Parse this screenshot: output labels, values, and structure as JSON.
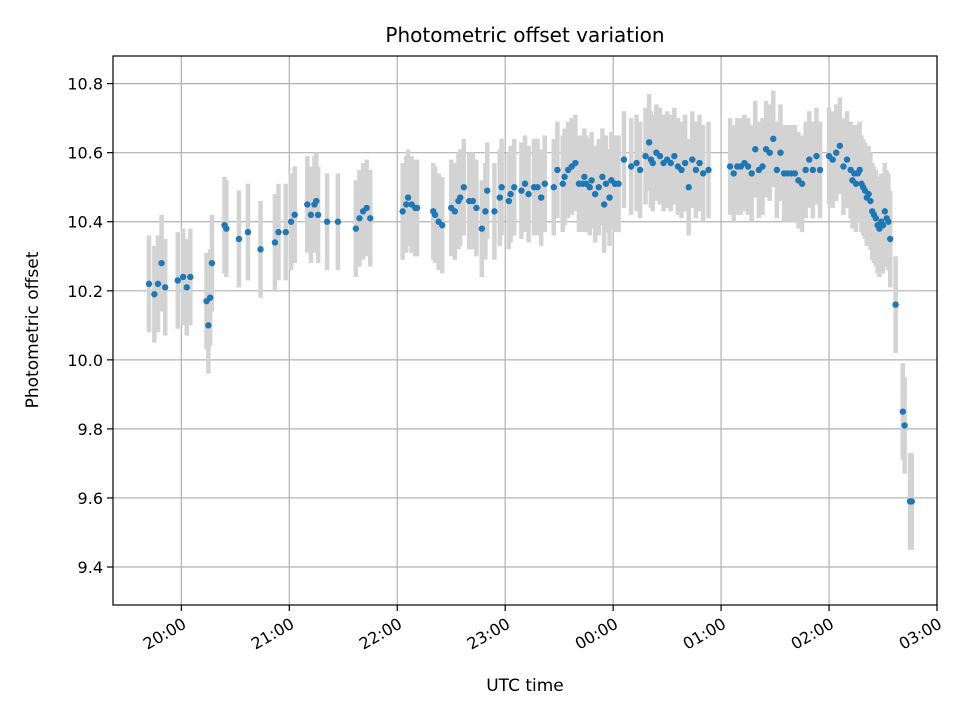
{
  "chart_data": {
    "type": "scatter",
    "title": "Photometric offset variation",
    "xlabel": "UTC time",
    "ylabel": "Photometric offset",
    "x_ticks": [
      "20:00",
      "21:00",
      "22:00",
      "23:00",
      "00:00",
      "01:00",
      "02:00",
      "03:00"
    ],
    "y_ticks": [
      "9.4",
      "9.6",
      "9.8",
      "10.0",
      "10.2",
      "10.4",
      "10.6",
      "10.8"
    ],
    "xlim": [
      "19:22",
      "03:00"
    ],
    "ylim": [
      9.29,
      10.88
    ],
    "grid": true,
    "colors": {
      "points": "#1f77b4",
      "errorbars": "#d3d3d3",
      "grid": "#b0b0b0"
    },
    "series": [
      {
        "error": 0.14,
        "points": [
          [
            "19:42",
            10.22
          ],
          [
            "19:45",
            10.19
          ],
          [
            "19:47",
            10.22
          ],
          [
            "19:49",
            10.28
          ],
          [
            "19:51",
            10.21
          ],
          [
            "19:58",
            10.23
          ],
          [
            "20:01",
            10.24
          ],
          [
            "20:03",
            10.21
          ],
          [
            "20:05",
            10.24
          ],
          [
            "20:14",
            10.17
          ],
          [
            "20:15",
            10.1
          ],
          [
            "20:16",
            10.18
          ],
          [
            "20:17",
            10.28
          ],
          [
            "20:24",
            10.39
          ],
          [
            "20:25",
            10.38
          ],
          [
            "20:32",
            10.35
          ],
          [
            "20:37",
            10.37
          ],
          [
            "20:44",
            10.32
          ],
          [
            "20:52",
            10.34
          ],
          [
            "20:54",
            10.37
          ],
          [
            "20:58",
            10.37
          ],
          [
            "21:01",
            10.4
          ],
          [
            "21:03",
            10.42
          ],
          [
            "21:10",
            10.45
          ],
          [
            "21:12",
            10.42
          ],
          [
            "21:14",
            10.45
          ],
          [
            "21:15",
            10.46
          ],
          [
            "21:16",
            10.42
          ],
          [
            "21:21",
            10.4
          ],
          [
            "21:27",
            10.4
          ],
          [
            "21:37",
            10.38
          ],
          [
            "21:39",
            10.41
          ],
          [
            "21:41",
            10.43
          ],
          [
            "21:43",
            10.44
          ],
          [
            "21:45",
            10.41
          ],
          [
            "22:03",
            10.43
          ],
          [
            "22:05",
            10.45
          ],
          [
            "22:06",
            10.47
          ],
          [
            "22:08",
            10.45
          ],
          [
            "22:10",
            10.44
          ],
          [
            "22:11",
            10.44
          ],
          [
            "22:20",
            10.43
          ],
          [
            "22:21",
            10.42
          ],
          [
            "22:23",
            10.4
          ],
          [
            "22:25",
            10.39
          ],
          [
            "22:30",
            10.44
          ],
          [
            "22:32",
            10.43
          ],
          [
            "22:34",
            10.46
          ],
          [
            "22:35",
            10.47
          ],
          [
            "22:37",
            10.5
          ],
          [
            "22:40",
            10.46
          ],
          [
            "22:42",
            10.46
          ],
          [
            "22:44",
            10.44
          ],
          [
            "22:47",
            10.38
          ],
          [
            "22:49",
            10.43
          ],
          [
            "22:50",
            10.49
          ],
          [
            "22:54",
            10.43
          ],
          [
            "22:57",
            10.47
          ],
          [
            "22:58",
            10.5
          ],
          [
            "23:02",
            10.46
          ],
          [
            "23:03",
            10.48
          ],
          [
            "23:05",
            10.5
          ],
          [
            "23:09",
            10.49
          ],
          [
            "23:11",
            10.51
          ],
          [
            "23:13",
            10.48
          ],
          [
            "23:16",
            10.5
          ],
          [
            "23:18",
            10.5
          ],
          [
            "23:20",
            10.47
          ],
          [
            "23:22",
            10.51
          ],
          [
            "23:27",
            10.5
          ],
          [
            "23:29",
            10.55
          ],
          [
            "23:32",
            10.51
          ],
          [
            "23:33",
            10.53
          ],
          [
            "23:35",
            10.55
          ],
          [
            "23:37",
            10.56
          ],
          [
            "23:39",
            10.57
          ],
          [
            "23:41",
            10.51
          ],
          [
            "23:43",
            10.51
          ],
          [
            "23:44",
            10.53
          ],
          [
            "23:45",
            10.51
          ],
          [
            "23:47",
            10.5
          ],
          [
            "23:48",
            10.52
          ],
          [
            "23:50",
            10.48
          ],
          [
            "23:52",
            10.5
          ],
          [
            "23:54",
            10.53
          ],
          [
            "23:55",
            10.45
          ],
          [
            "23:56",
            10.51
          ],
          [
            "23:58",
            10.47
          ],
          [
            "23:59",
            10.52
          ],
          [
            "00:01",
            10.51
          ],
          [
            "00:03",
            10.51
          ],
          [
            "00:06",
            10.58
          ],
          [
            "00:10",
            10.56
          ],
          [
            "00:13",
            10.57
          ],
          [
            "00:15",
            10.55
          ],
          [
            "00:18",
            10.59
          ],
          [
            "00:20",
            10.63
          ],
          [
            "00:21",
            10.58
          ],
          [
            "00:22",
            10.57
          ],
          [
            "00:24",
            10.6
          ],
          [
            "00:26",
            10.59
          ],
          [
            "00:28",
            10.57
          ],
          [
            "00:30",
            10.58
          ],
          [
            "00:32",
            10.57
          ],
          [
            "00:34",
            10.59
          ],
          [
            "00:36",
            10.56
          ],
          [
            "00:38",
            10.55
          ],
          [
            "00:40",
            10.57
          ],
          [
            "00:42",
            10.5
          ],
          [
            "00:44",
            10.58
          ],
          [
            "00:46",
            10.55
          ],
          [
            "00:48",
            10.57
          ],
          [
            "00:50",
            10.54
          ],
          [
            "00:53",
            10.55
          ],
          [
            "01:05",
            10.56
          ],
          [
            "01:07",
            10.54
          ],
          [
            "01:09",
            10.56
          ],
          [
            "01:11",
            10.56
          ],
          [
            "01:13",
            10.57
          ],
          [
            "01:15",
            10.56
          ],
          [
            "01:17",
            10.54
          ],
          [
            "01:19",
            10.61
          ],
          [
            "01:21",
            10.55
          ],
          [
            "01:23",
            10.56
          ],
          [
            "01:25",
            10.61
          ],
          [
            "01:27",
            10.6
          ],
          [
            "01:29",
            10.64
          ],
          [
            "01:31",
            10.55
          ],
          [
            "01:33",
            10.6
          ],
          [
            "01:35",
            10.54
          ],
          [
            "01:37",
            10.54
          ],
          [
            "01:39",
            10.54
          ],
          [
            "01:41",
            10.54
          ],
          [
            "01:43",
            10.52
          ],
          [
            "01:45",
            10.51
          ],
          [
            "01:47",
            10.55
          ],
          [
            "01:49",
            10.58
          ],
          [
            "01:51",
            10.55
          ],
          [
            "01:53",
            10.59
          ],
          [
            "01:55",
            10.55
          ],
          [
            "02:00",
            10.59
          ],
          [
            "02:02",
            10.58
          ],
          [
            "02:04",
            10.6
          ],
          [
            "02:06",
            10.62
          ],
          [
            "02:08",
            10.56
          ],
          [
            "02:10",
            10.58
          ],
          [
            "02:12",
            10.55
          ],
          [
            "02:13",
            10.52
          ],
          [
            "02:14",
            10.54
          ],
          [
            "02:15",
            10.51
          ],
          [
            "02:16",
            10.54
          ],
          [
            "02:17",
            10.55
          ],
          [
            "02:18",
            10.51
          ],
          [
            "02:19",
            10.5
          ],
          [
            "02:20",
            10.49
          ],
          [
            "02:21",
            10.47
          ],
          [
            "02:22",
            10.48
          ],
          [
            "02:23",
            10.46
          ],
          [
            "02:24",
            10.43
          ],
          [
            "02:25",
            10.42
          ],
          [
            "02:26",
            10.41
          ],
          [
            "02:27",
            10.39
          ],
          [
            "02:28",
            10.38
          ],
          [
            "02:29",
            10.4
          ],
          [
            "02:30",
            10.39
          ],
          [
            "02:31",
            10.43
          ],
          [
            "02:32",
            10.41
          ],
          [
            "02:33",
            10.4
          ],
          [
            "02:34",
            10.35
          ],
          [
            "02:37",
            10.16
          ],
          [
            "02:41",
            9.85
          ],
          [
            "02:42",
            9.81
          ],
          [
            "02:45",
            9.59
          ],
          [
            "02:46",
            9.59
          ]
        ]
      }
    ]
  }
}
